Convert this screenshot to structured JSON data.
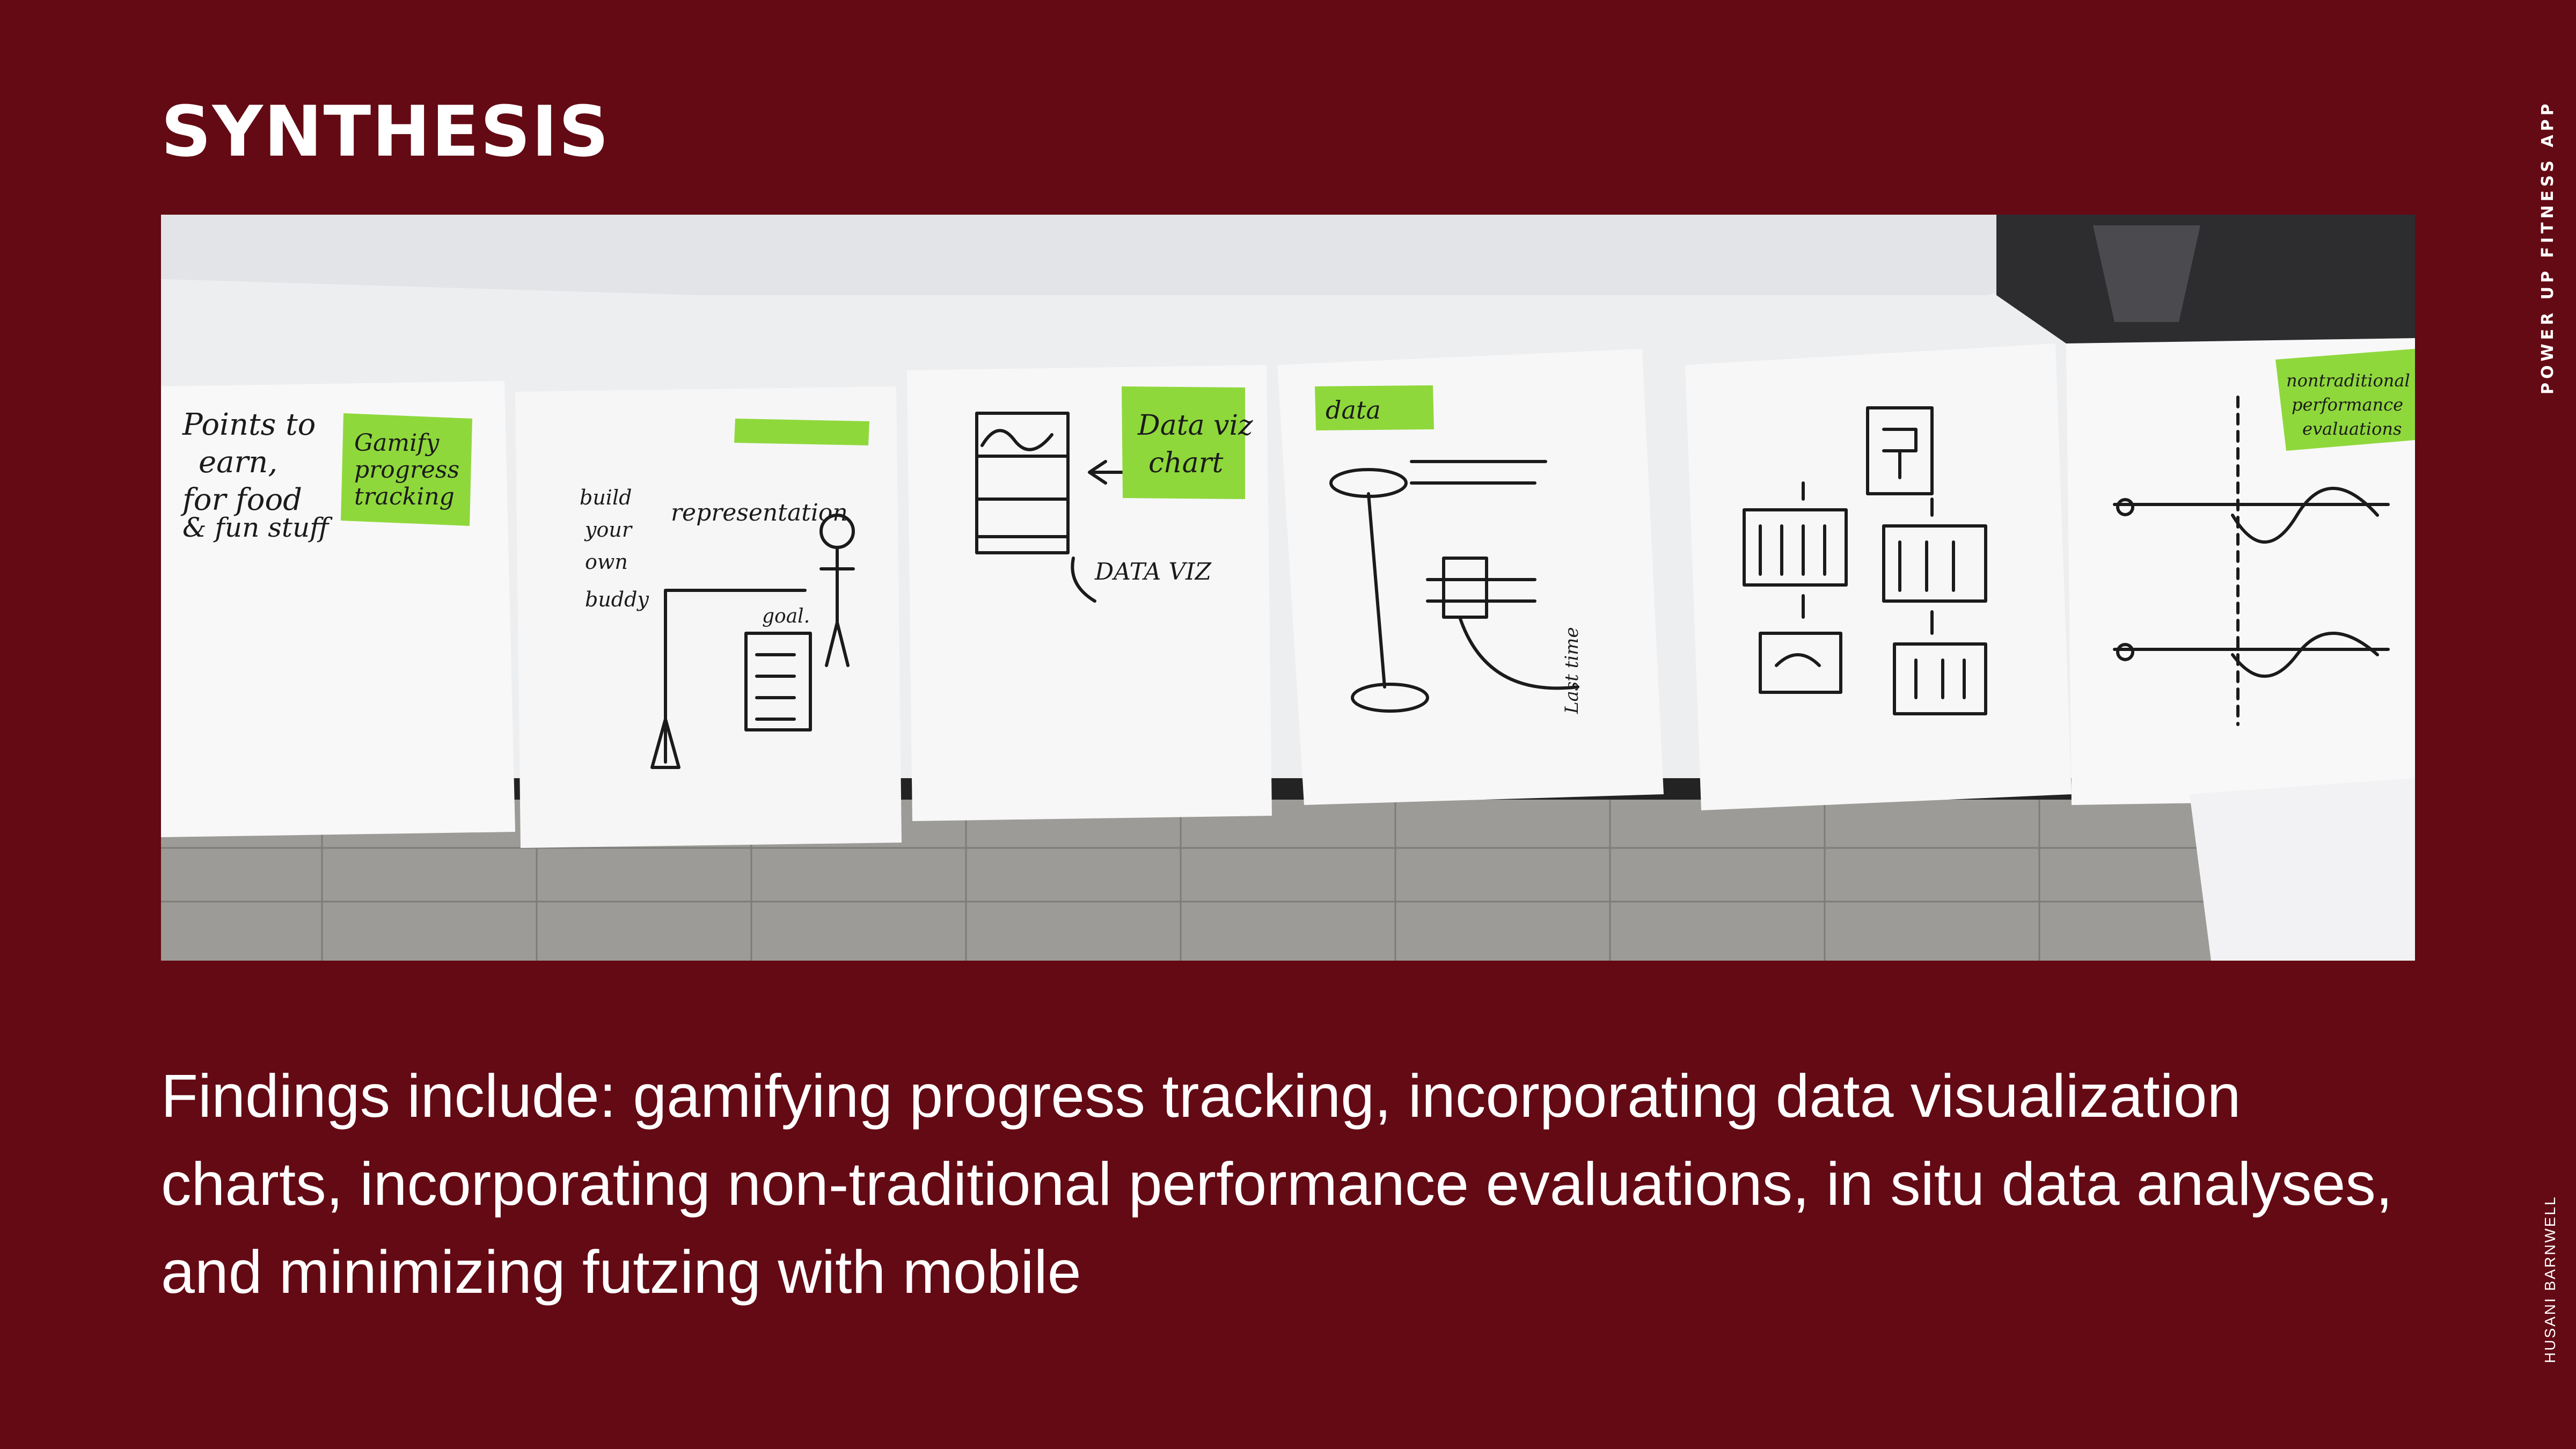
{
  "slide": {
    "title": "SYNTHESIS",
    "side_label": "POWER UP FITNESS APP",
    "author": "HUSANI BARNWELL",
    "findings": "Findings include: gamifying progress tracking, incorporating data visualization charts, incorporating non-traditional performance evaluations, in situ data analyses, and minimizing futzing with mobile"
  },
  "photo": {
    "alt": "Sketches on paper taped to a wall with sticky notes",
    "sticky_notes": {
      "gamify": [
        "Gamify",
        "progress",
        "tracking"
      ],
      "dataviz": [
        "Data viz",
        "chart"
      ],
      "data": "data",
      "nontraditional": [
        "nontraditional",
        "performance",
        "evaluations"
      ]
    },
    "sheet_text": {
      "points": [
        "Points to",
        "earn,",
        "for food",
        "& fun stuff"
      ],
      "build": [
        "build",
        "your",
        "own",
        "buddy"
      ],
      "representation": "representation",
      "goal": "goal.",
      "dataviz_label": "DATA VIZ",
      "last_time": "Last time"
    }
  }
}
